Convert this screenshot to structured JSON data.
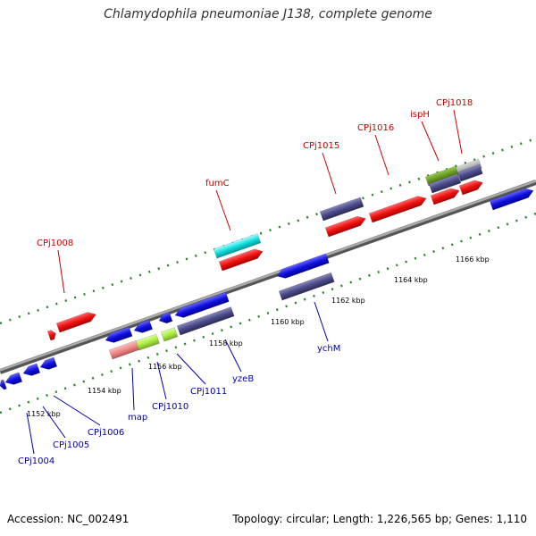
{
  "title": "Chlamydophila pneumoniae J138, complete genome",
  "footer": {
    "accession": "Accession: NC_002491",
    "topology": "Topology: circular; Length: 1,226,565 bp; Genes: 1,110"
  },
  "colors": {
    "forward_gene": "#ee1111",
    "reverse_gene": "#1111dd",
    "dark_gene": "#4a4a8a",
    "cyan_gene": "#11dddd",
    "lime_gene": "#aaee44",
    "pink_gene": "#ee8888",
    "olive_gene": "#669922",
    "backbone": "#888888",
    "dots": "#228822",
    "forward_label": "#cc0000",
    "reverse_label": "#0000aa"
  },
  "scale_labels": [
    "1152 kbp",
    "1154 kbp",
    "1156 kbp",
    "1158 kbp",
    "1160 kbp",
    "1162 kbp",
    "1164 kbp",
    "1166 kbp"
  ],
  "forward_labels": [
    "CPj1008",
    "fumC",
    "CPj1015",
    "CPj1016",
    "ispH",
    "CPj1018"
  ],
  "reverse_labels": [
    "CPj1004",
    "CPj1005",
    "CPj1006",
    "map",
    "CPj1010",
    "CPj1011",
    "yzeB",
    "ychM"
  ]
}
